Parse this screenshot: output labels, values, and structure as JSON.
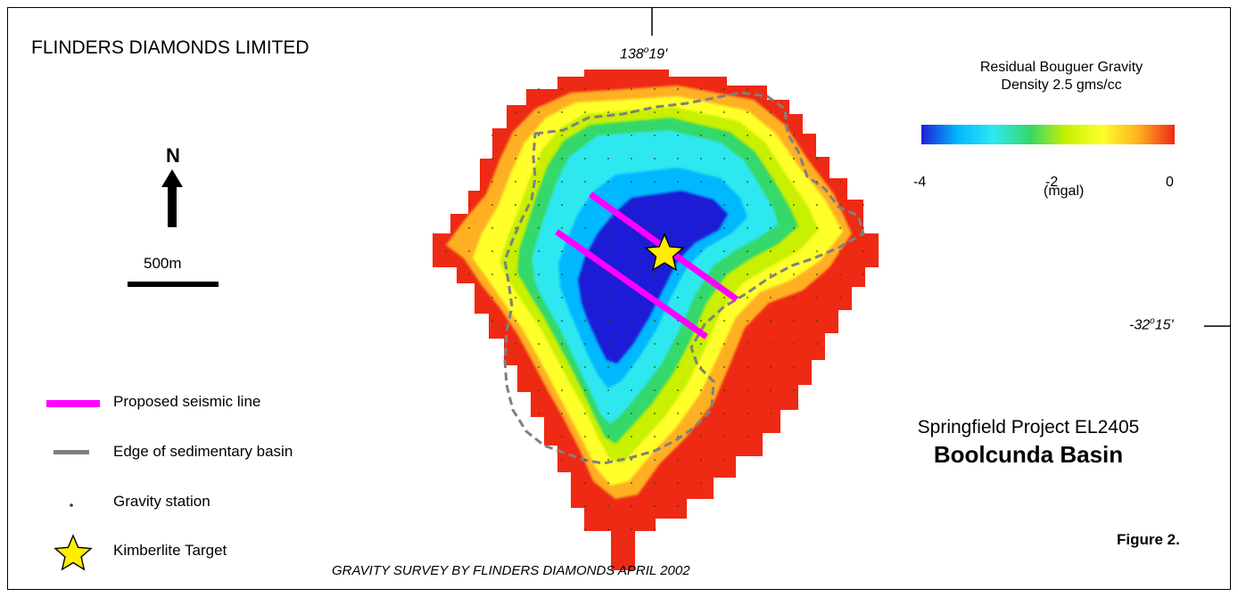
{
  "company": "FLINDERS DIAMONDS LIMITED",
  "grid": {
    "longitude": {
      "deg": "138",
      "min": "19'"
    },
    "latitude": {
      "deg": "-32",
      "min": "15'"
    }
  },
  "gravity": {
    "title_line1": "Residual Bouguer Gravity",
    "title_line2": "Density 2.5 gms/cc",
    "colorbar": {
      "min": -4,
      "max": 0,
      "ticks": [
        "-4",
        "-2",
        "0"
      ],
      "units": "(mgal)",
      "colors": [
        "#1f1fd6",
        "#00b8ff",
        "#2fe8f0",
        "#34d86a",
        "#c8f000",
        "#ffff2a",
        "#ffb020",
        "#ee2a14"
      ]
    }
  },
  "north_arrow": {
    "label": "N"
  },
  "scale_bar": {
    "label": "500m"
  },
  "legend": {
    "seismic": {
      "label": "Proposed seismic line",
      "color": "#ff00ff"
    },
    "basin_edge": {
      "label": "Edge of sedimentary basin",
      "color": "#808080"
    },
    "station": {
      "label": "Gravity station",
      "color": "#2b4a00"
    },
    "target": {
      "label": "Kimberlite Target",
      "color": "#ffee00"
    }
  },
  "project": {
    "subtitle": "Springfield Project  EL2405",
    "title": "Boolcunda Basin"
  },
  "figure_label": "Figure 2.",
  "survey_note": "GRAVITY SURVEY BY FLINDERS DIAMONDS APRIL 2002"
}
